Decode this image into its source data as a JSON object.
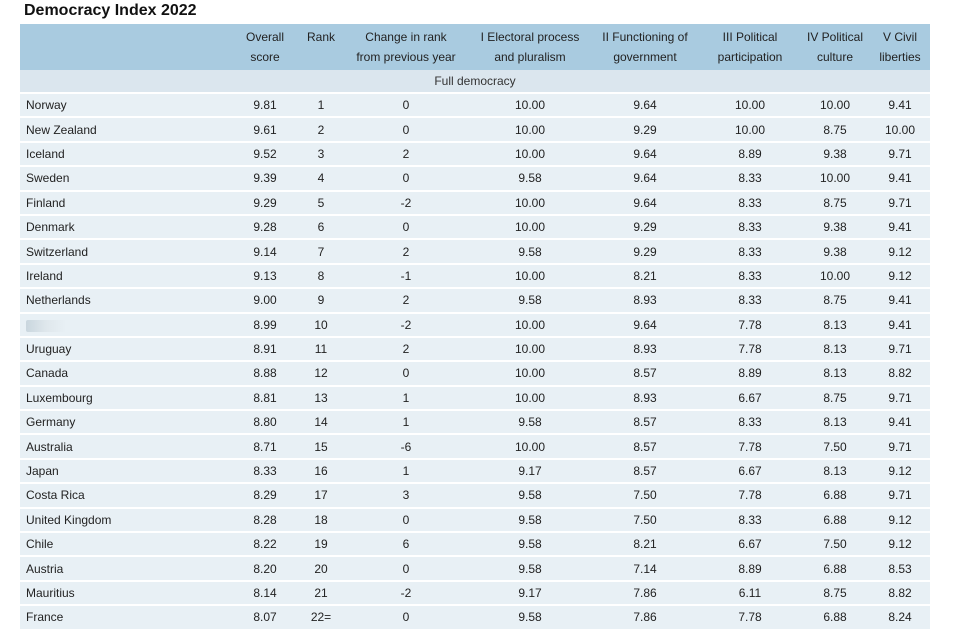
{
  "title": "Democracy Index 2022",
  "headers": {
    "overall": [
      "Overall",
      "score"
    ],
    "rank": [
      "Rank",
      ""
    ],
    "change": [
      "Change in rank",
      "from previous year"
    ],
    "electoral": [
      "I Electoral process",
      "and pluralism"
    ],
    "functioning": [
      "II Functioning of",
      "government"
    ],
    "participation": [
      "III Political",
      "participation"
    ],
    "culture": [
      "IV Political",
      "culture"
    ],
    "civil": [
      "V Civil",
      "liberties"
    ]
  },
  "section_label": "Full democracy",
  "rows": [
    [
      "Norway",
      "9.81",
      "1",
      "0",
      "10.00",
      "9.64",
      "10.00",
      "10.00",
      "9.41"
    ],
    [
      "New Zealand",
      "9.61",
      "2",
      "0",
      "10.00",
      "9.29",
      "10.00",
      "8.75",
      "10.00"
    ],
    [
      "Iceland",
      "9.52",
      "3",
      "2",
      "10.00",
      "9.64",
      "8.89",
      "9.38",
      "9.71"
    ],
    [
      "Sweden",
      "9.39",
      "4",
      "0",
      "9.58",
      "9.64",
      "8.33",
      "10.00",
      "9.41"
    ],
    [
      "Finland",
      "9.29",
      "5",
      "-2",
      "10.00",
      "9.64",
      "8.33",
      "8.75",
      "9.71"
    ],
    [
      "Denmark",
      "9.28",
      "6",
      "0",
      "10.00",
      "9.29",
      "8.33",
      "9.38",
      "9.41"
    ],
    [
      "Switzerland",
      "9.14",
      "7",
      "2",
      "9.58",
      "9.29",
      "8.33",
      "9.38",
      "9.12"
    ],
    [
      "Ireland",
      "9.13",
      "8",
      "-1",
      "10.00",
      "8.21",
      "8.33",
      "10.00",
      "9.12"
    ],
    [
      "Netherlands",
      "9.00",
      "9",
      "2",
      "9.58",
      "8.93",
      "8.33",
      "8.75",
      "9.41"
    ],
    [
      "",
      "8.99",
      "10",
      "-2",
      "10.00",
      "9.64",
      "7.78",
      "8.13",
      "9.41"
    ],
    [
      "Uruguay",
      "8.91",
      "11",
      "2",
      "10.00",
      "8.93",
      "7.78",
      "8.13",
      "9.71"
    ],
    [
      "Canada",
      "8.88",
      "12",
      "0",
      "10.00",
      "8.57",
      "8.89",
      "8.13",
      "8.82"
    ],
    [
      "Luxembourg",
      "8.81",
      "13",
      "1",
      "10.00",
      "8.93",
      "6.67",
      "8.75",
      "9.71"
    ],
    [
      "Germany",
      "8.80",
      "14",
      "1",
      "9.58",
      "8.57",
      "8.33",
      "8.13",
      "9.41"
    ],
    [
      "Australia",
      "8.71",
      "15",
      "-6",
      "10.00",
      "8.57",
      "7.78",
      "7.50",
      "9.71"
    ],
    [
      "Japan",
      "8.33",
      "16",
      "1",
      "9.17",
      "8.57",
      "6.67",
      "8.13",
      "9.12"
    ],
    [
      "Costa Rica",
      "8.29",
      "17",
      "3",
      "9.58",
      "7.50",
      "7.78",
      "6.88",
      "9.71"
    ],
    [
      "United Kingdom",
      "8.28",
      "18",
      "0",
      "9.58",
      "7.50",
      "8.33",
      "6.88",
      "9.12"
    ],
    [
      "Chile",
      "8.22",
      "19",
      "6",
      "9.58",
      "8.21",
      "6.67",
      "7.50",
      "9.12"
    ],
    [
      "Austria",
      "8.20",
      "20",
      "0",
      "9.58",
      "7.14",
      "8.89",
      "6.88",
      "8.53"
    ],
    [
      "Mauritius",
      "8.14",
      "21",
      "-2",
      "9.17",
      "7.86",
      "6.11",
      "8.75",
      "8.82"
    ],
    [
      "France",
      "8.07",
      "22=",
      "0",
      "9.58",
      "7.86",
      "7.78",
      "6.88",
      "8.24"
    ]
  ]
}
